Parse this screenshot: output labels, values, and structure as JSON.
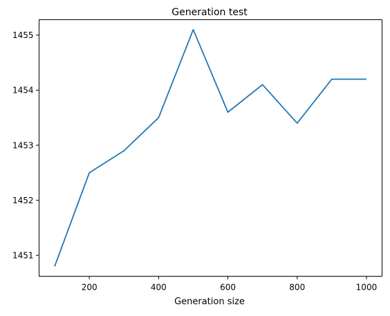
{
  "chart_data": {
    "type": "line",
    "title": "Generation test",
    "xlabel": "Generation size",
    "ylabel": "",
    "x": [
      100,
      200,
      300,
      400,
      500,
      600,
      700,
      800,
      900,
      1000
    ],
    "series": [
      {
        "values": [
          1450.8,
          1452.5,
          1452.9,
          1453.5,
          1455.1,
          1453.6,
          1454.1,
          1453.4,
          1454.2,
          1454.2
        ],
        "color": "#1f77b4"
      }
    ],
    "xlim": [
      55,
      1045
    ],
    "ylim": [
      1450.62,
      1455.28
    ],
    "xticks": [
      200,
      400,
      600,
      800,
      1000
    ],
    "yticks": [
      1451,
      1452,
      1453,
      1454,
      1455
    ],
    "xtick_labels": [
      "200",
      "400",
      "600",
      "800",
      "1000"
    ],
    "ytick_labels": [
      "1451",
      "1452",
      "1453",
      "1454",
      "1455"
    ],
    "grid": false,
    "legend": false
  }
}
